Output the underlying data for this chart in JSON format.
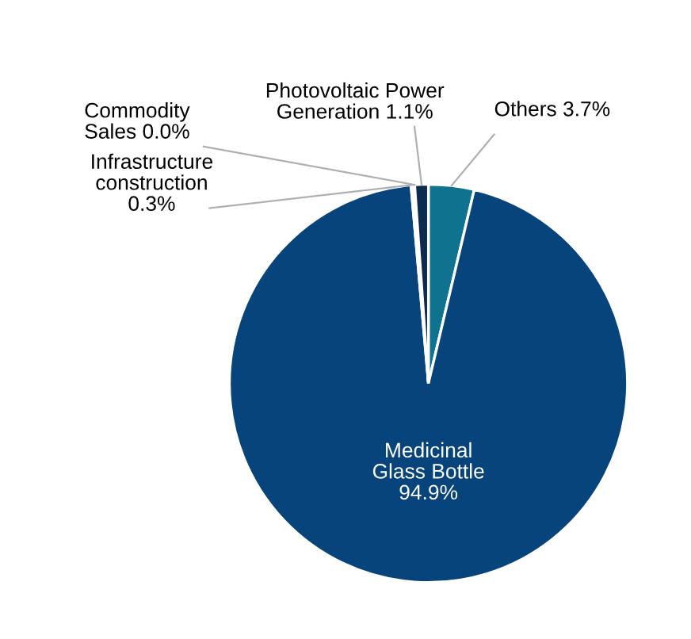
{
  "chart_data": {
    "type": "pie",
    "categories": [
      "Others",
      "Medicinal\nGlass Bottle",
      "Infrastructure\nconstruction",
      "Commodity\nSales",
      "Photovoltaic Power\nGeneration"
    ],
    "values": [
      3.7,
      94.9,
      0.3,
      0.0,
      1.1
    ],
    "colors": [
      "#0f7390",
      "#08447c",
      "#ffffff",
      "#b0b0b0",
      "#0d2a4f"
    ],
    "value_labels": [
      "3.7%",
      "94.9%",
      "0.3%",
      "0.0%",
      "1.1%"
    ]
  }
}
